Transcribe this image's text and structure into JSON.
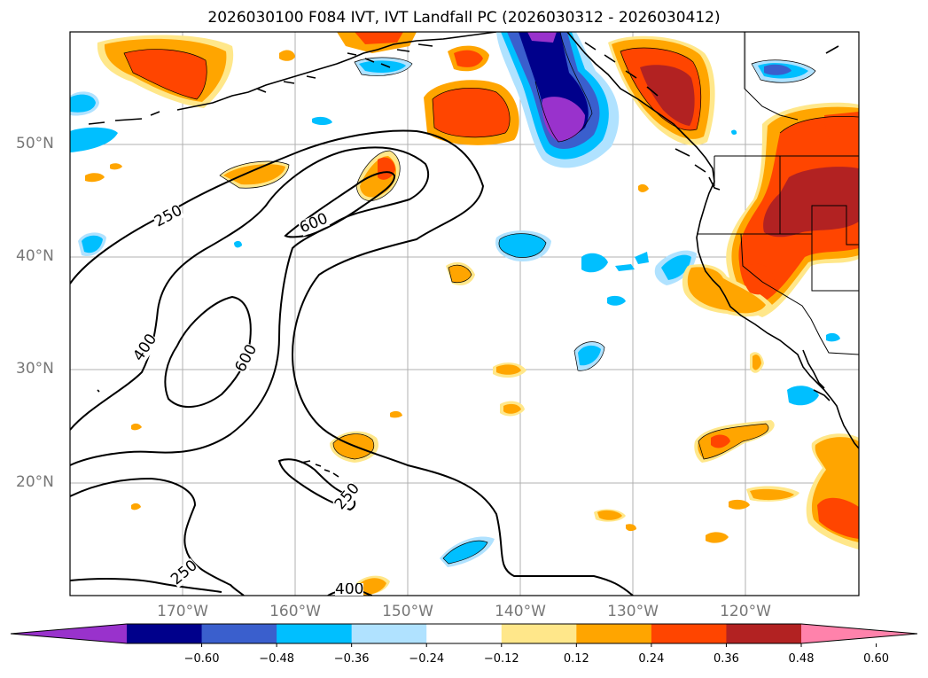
{
  "title": "2026030100 F084 IVT, IVT Landfall PC (2026030312 - 2026030412)",
  "map": {
    "lat_labels": [
      "50°N",
      "40°N",
      "30°N",
      "20°N"
    ],
    "lon_labels": [
      "170°W",
      "160°W",
      "150°W",
      "140°W",
      "130°W",
      "120°W"
    ],
    "contour_labels": [
      "250",
      "600",
      "400",
      "600",
      "250",
      "250",
      "400"
    ],
    "gridline_color": "#b0b0b0",
    "coastline_color": "#000000"
  },
  "colorbar": {
    "ticks": [
      "−0.60",
      "−0.48",
      "−0.36",
      "−0.24",
      "−0.12",
      "0.12",
      "0.24",
      "0.36",
      "0.48",
      "0.60"
    ],
    "colors": [
      "#9932cc",
      "#00008b",
      "#3a5fcd",
      "#00bfff",
      "#b0e2ff",
      "#ffffff",
      "#ffe78a",
      "#ffa500",
      "#ff4500",
      "#b22222",
      "#ff82ab"
    ]
  }
}
